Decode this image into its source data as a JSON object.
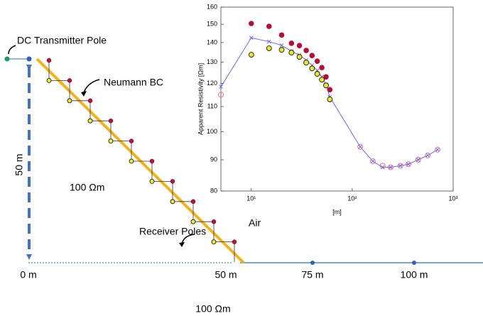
{
  "diagram": {
    "transmitter_label": "DC Transmitter Pole",
    "boundary_label": "Neumann BC",
    "depth_label": "50 m",
    "upper_resistivity": "100 Ωm",
    "receiver_label": "Receiver Poles",
    "air_label": "Air",
    "distance_labels": [
      "0 m",
      "50 m",
      "75 m",
      "100 m"
    ],
    "lower_resistivity": "100 Ωm"
  },
  "chart_data": {
    "type": "scatter",
    "xlabel": "[m]",
    "ylabel": "Apparent Resistivity [Ωm]",
    "xlim": [
      5,
      1000
    ],
    "ylim": [
      80,
      160
    ],
    "xscale": "log",
    "yscale": "log",
    "xticks": [
      {
        "value": 10,
        "label": "10¹"
      },
      {
        "value": 100,
        "label": "10²"
      },
      {
        "value": 1000,
        "label": "10³"
      }
    ],
    "yticks": [
      80,
      90,
      100,
      110,
      120,
      130,
      140,
      150,
      160
    ],
    "series": [
      {
        "color": "#6a6ae8",
        "marker": "x",
        "line": true,
        "x": [
          5,
          10,
          15,
          20,
          25,
          30,
          35,
          40,
          45,
          50,
          55,
          60,
          120,
          160,
          200,
          240,
          300,
          360,
          450,
          560,
          700
        ],
        "values": [
          118.5,
          142.5,
          140.5,
          138.5,
          135.5,
          133.5,
          131,
          128.5,
          126,
          123,
          119.5,
          114,
          94.5,
          89.5,
          87.5,
          87.5,
          88,
          88.5,
          90,
          91.5,
          93.5
        ]
      },
      {
        "color": "#b0103a",
        "marker": "filled",
        "x": [
          10,
          15,
          20,
          25,
          30,
          35,
          40,
          45,
          50,
          55,
          60
        ],
        "values": [
          150.4,
          148.8,
          144,
          139.6,
          138.4,
          135.9,
          133.3,
          130.5,
          127.4,
          123,
          117.2
        ]
      },
      {
        "color": "#e6e62a",
        "marker": "filled-outlined",
        "x": [
          10,
          15,
          20,
          25,
          30,
          35,
          40,
          45,
          50,
          55,
          60
        ],
        "values": [
          133.7,
          137,
          136.2,
          134.8,
          132.6,
          129.8,
          127,
          124.4,
          121.7,
          119.1,
          113
        ]
      },
      {
        "color": "#e0709a",
        "marker": "open",
        "x": [
          5,
          120,
          160,
          200,
          240,
          300,
          360,
          450,
          560,
          700
        ],
        "values": [
          115,
          94.5,
          89.5,
          88,
          87.5,
          88,
          88.5,
          90,
          91.5,
          93.5
        ]
      }
    ]
  }
}
